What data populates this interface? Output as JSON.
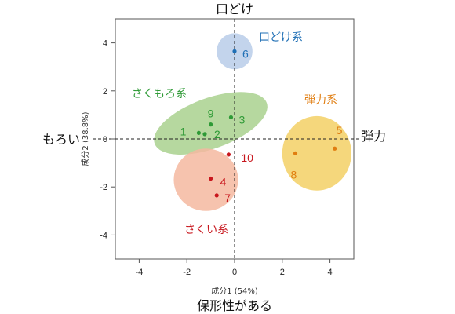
{
  "chart_data": {
    "type": "scatter",
    "xlabel": "成分1 (54%)",
    "ylabel": "成分2 (38.8%)",
    "xlim": [
      -5,
      5
    ],
    "ylim": [
      -5,
      5
    ],
    "x_ticks": [
      -4,
      -2,
      0,
      2,
      4
    ],
    "y_ticks": [
      -4,
      -2,
      0,
      2,
      4
    ],
    "x_tick_labels": [
      "-4",
      "-2",
      "0",
      "2",
      "4"
    ],
    "y_tick_labels": [
      "-4",
      "-2",
      "0",
      "2",
      "4"
    ],
    "direction_labels": {
      "top": "口どけ",
      "bottom": "保形性がある",
      "left": "もろい",
      "right": "弾力"
    },
    "series": [
      {
        "name": "口どけ系",
        "color": "#1f6fb5",
        "fill": "#b9cde9",
        "ellipse": {
          "cx": 0.0,
          "cy": 3.65,
          "rx": 0.75,
          "ry": 0.75,
          "angle": 0
        },
        "points": [
          {
            "id": "6",
            "x": 0.0,
            "y": 3.65
          }
        ]
      },
      {
        "name": "さくもろ系",
        "color": "#2e9a36",
        "fill": "#a9d18e",
        "ellipse": {
          "cx": -1.0,
          "cy": 0.65,
          "rx": 2.5,
          "ry": 1.05,
          "angle": 20
        },
        "points": [
          {
            "id": "1",
            "x": -1.5,
            "y": 0.25
          },
          {
            "id": "2",
            "x": -1.25,
            "y": 0.2
          },
          {
            "id": "9",
            "x": -1.0,
            "y": 0.6
          },
          {
            "id": "3",
            "x": -0.15,
            "y": 0.9
          }
        ]
      },
      {
        "name": "さくい系",
        "color": "#c8161d",
        "fill": "#f5b8a0",
        "ellipse": {
          "cx": -1.2,
          "cy": -1.7,
          "rx": 1.35,
          "ry": 1.3,
          "angle": 0
        },
        "points": [
          {
            "id": "10",
            "x": -0.25,
            "y": -0.65
          },
          {
            "id": "4",
            "x": -1.0,
            "y": -1.65
          },
          {
            "id": "7",
            "x": -0.75,
            "y": -2.35
          }
        ]
      },
      {
        "name": "弾力系",
        "color": "#e07d10",
        "fill": "#f3d065",
        "ellipse": {
          "cx": 3.45,
          "cy": -0.6,
          "rx": 1.45,
          "ry": 1.55,
          "angle": 0
        },
        "points": [
          {
            "id": "5",
            "x": 4.2,
            "y": -0.4
          },
          {
            "id": "8",
            "x": 2.55,
            "y": -0.6
          }
        ]
      }
    ]
  }
}
